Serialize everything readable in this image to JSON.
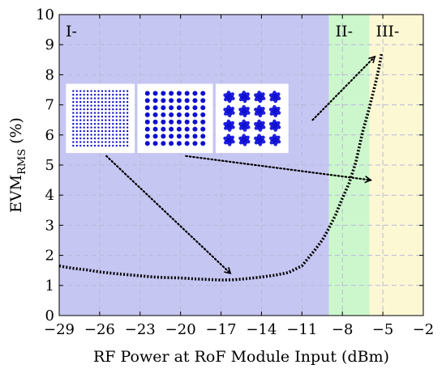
{
  "chart_data": {
    "type": "line",
    "xlabel": "RF Power at RoF Module Input (dBm)",
    "ylabel": {
      "main": "EVM",
      "subscript": "RMS",
      "unit": "(%)"
    },
    "xlim": [
      -29,
      -2
    ],
    "ylim": [
      0,
      10
    ],
    "xticks": [
      -29,
      -26,
      -23,
      -20,
      -17,
      -14,
      -11,
      -8,
      -5,
      -2
    ],
    "xtick_labels": [
      "−29",
      "−26",
      "−23",
      "−20",
      "−17",
      "−14",
      "−11",
      "−8",
      "−5",
      "−2"
    ],
    "yticks": [
      0,
      1,
      2,
      3,
      4,
      5,
      6,
      7,
      8,
      9,
      10
    ],
    "ytick_labels": [
      "0",
      "1",
      "2",
      "3",
      "4",
      "5",
      "6",
      "7",
      "8",
      "9",
      "10"
    ],
    "grid": true,
    "regions": [
      {
        "label": "I-",
        "x_start": -29,
        "x_end": -9.0,
        "color": "#c6c6f3"
      },
      {
        "label": "II-",
        "x_start": -9.0,
        "x_end": -6.0,
        "color": "#ccf7cc"
      },
      {
        "label": "III-",
        "x_start": -6.0,
        "x_end": -2,
        "color": "#fcf8d4"
      }
    ],
    "series": [
      {
        "line_style": "dotted",
        "color": "#000000",
        "x": [
          -29,
          -28,
          -27,
          -26,
          -25,
          -24,
          -23,
          -22,
          -21,
          -20,
          -19,
          -18,
          -17,
          -16,
          -15,
          -14,
          -13,
          -12,
          -11,
          -10,
          -9.5,
          -9,
          -8.5,
          -8,
          -7.5,
          -7,
          -6.5,
          -6,
          -5.5,
          -5.3,
          -5.1
        ],
        "y": [
          1.65,
          1.57,
          1.52,
          1.45,
          1.4,
          1.36,
          1.32,
          1.28,
          1.26,
          1.25,
          1.22,
          1.2,
          1.18,
          1.19,
          1.23,
          1.28,
          1.34,
          1.43,
          1.65,
          2.2,
          2.5,
          2.9,
          3.35,
          3.9,
          4.4,
          5.1,
          6.1,
          6.9,
          7.8,
          8.2,
          8.7
        ]
      }
    ],
    "annotations": [
      {
        "type": "arrow",
        "from": [
          -25.5,
          5.3
        ],
        "to": [
          -16.3,
          1.4
        ]
      },
      {
        "type": "arrow",
        "from": [
          -19.6,
          5.3
        ],
        "to": [
          -5.9,
          4.5
        ]
      },
      {
        "type": "arrow",
        "from": [
          -10.2,
          6.5
        ],
        "to": [
          -5.6,
          8.6
        ]
      }
    ],
    "insets": [
      {
        "name": "constellation-256",
        "grid": 16,
        "x0": -28.5,
        "x1": -23.4,
        "y0": 5.4,
        "y1": 7.7
      },
      {
        "name": "constellation-64",
        "grid": 8,
        "x0": -23.2,
        "x1": -17.6,
        "y0": 5.4,
        "y1": 7.7
      },
      {
        "name": "constellation-16",
        "grid": 4,
        "x0": -17.4,
        "x1": -12.0,
        "y0": 5.4,
        "y1": 7.7
      }
    ]
  }
}
